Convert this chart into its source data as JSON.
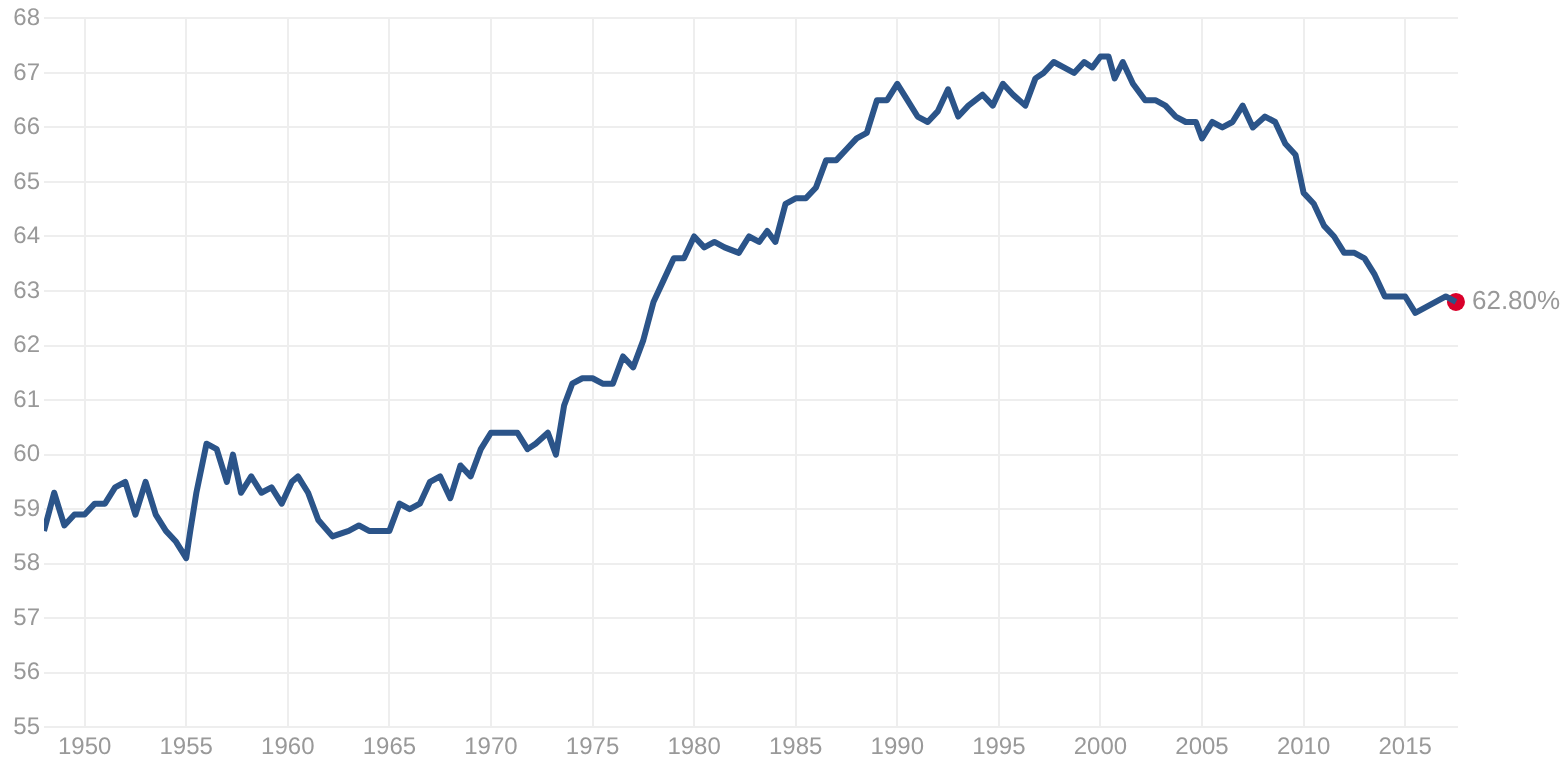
{
  "chart_data": {
    "type": "line",
    "x": [
      1948.0,
      1948.5,
      1949,
      1949.5,
      1950,
      1950.5,
      1951,
      1951.5,
      1952,
      1952.5,
      1953,
      1953.5,
      1954,
      1954.5,
      1955,
      1955.2,
      1955.5,
      1956,
      1956.5,
      1957,
      1957.3,
      1957.7,
      1958.2,
      1958.7,
      1959.2,
      1959.7,
      1960.2,
      1960.5,
      1961,
      1961.5,
      1962.2,
      1963,
      1963.5,
      1964,
      1965,
      1965.5,
      1966,
      1966.5,
      1967,
      1967.5,
      1968,
      1968.5,
      1969,
      1969.5,
      1970,
      1971,
      1971.3,
      1971.8,
      1972.2,
      1972.8,
      1973.2,
      1973.6,
      1974,
      1974.5,
      1975,
      1975.5,
      1976,
      1976.5,
      1977,
      1977.5,
      1978,
      1978.5,
      1979,
      1979.5,
      1980,
      1980.5,
      1981,
      1981.5,
      1982.2,
      1982.7,
      1983.2,
      1983.6,
      1984,
      1984.5,
      1985,
      1985.5,
      1986,
      1986.5,
      1987,
      1987.5,
      1988,
      1988.5,
      1989,
      1989.5,
      1990,
      1990.5,
      1991,
      1991.5,
      1992,
      1992.5,
      1993,
      1993.5,
      1994.2,
      1994.7,
      1995.2,
      1995.7,
      1996.3,
      1996.8,
      1997.2,
      1997.7,
      1998.2,
      1998.7,
      1999.2,
      1999.6,
      2000,
      2000.4,
      2000.7,
      2001.1,
      2001.6,
      2002.2,
      2002.7,
      2003.2,
      2003.7,
      2004.2,
      2004.7,
      2005,
      2005.5,
      2006,
      2006.5,
      2007,
      2007.5,
      2008.1,
      2008.6,
      2009.1,
      2009.6,
      2010,
      2010.5,
      2011,
      2011.5,
      2012,
      2012.5,
      2013,
      2013.5,
      2014,
      2014.5,
      2015,
      2015.5,
      2016,
      2016.5,
      2017,
      2017.5
    ],
    "series": [
      {
        "color": "#2b5489",
        "marker": "none",
        "values": [
          58.6,
          59.3,
          58.7,
          58.9,
          58.9,
          59.1,
          59.1,
          59.4,
          59.5,
          58.9,
          59.5,
          58.9,
          58.6,
          58.4,
          58.1,
          58.6,
          59.3,
          60.2,
          60.1,
          59.5,
          60.0,
          59.3,
          59.6,
          59.3,
          59.4,
          59.1,
          59.5,
          59.6,
          59.3,
          58.8,
          58.5,
          58.6,
          58.7,
          58.6,
          58.6,
          59.1,
          59.0,
          59.1,
          59.5,
          59.6,
          59.2,
          59.8,
          59.6,
          60.1,
          60.4,
          60.4,
          60.4,
          60.1,
          60.2,
          60.4,
          60.0,
          60.9,
          61.3,
          61.4,
          61.4,
          61.3,
          61.3,
          61.8,
          61.6,
          62.1,
          62.8,
          63.2,
          63.6,
          63.6,
          64.0,
          63.8,
          63.9,
          63.8,
          63.7,
          64.0,
          63.9,
          64.1,
          63.9,
          64.6,
          64.7,
          64.7,
          64.9,
          65.4,
          65.4,
          65.6,
          65.8,
          65.9,
          66.5,
          66.5,
          66.8,
          66.5,
          66.2,
          66.1,
          66.3,
          66.7,
          66.2,
          66.4,
          66.6,
          66.4,
          66.8,
          66.6,
          66.4,
          66.9,
          67.0,
          67.2,
          67.1,
          67.0,
          67.2,
          67.1,
          67.3,
          67.3,
          66.9,
          67.2,
          66.8,
          66.5,
          66.5,
          66.4,
          66.2,
          66.1,
          66.1,
          65.8,
          66.1,
          66.0,
          66.1,
          66.4,
          66.0,
          66.2,
          66.1,
          65.7,
          65.5,
          64.8,
          64.6,
          64.2,
          64.0,
          63.7,
          63.7,
          63.6,
          63.3,
          62.9,
          62.9,
          62.9,
          62.6,
          62.7,
          62.8,
          62.9,
          62.8
        ]
      },
      {
        "type": "scatter",
        "marker": "circle",
        "color": "#d9002b",
        "x": [
          2017.5
        ],
        "values": [
          62.8
        ]
      }
    ],
    "xlim": [
      1948,
      2017.6
    ],
    "xticks": [
      1950,
      1955,
      1960,
      1965,
      1970,
      1975,
      1980,
      1985,
      1990,
      1995,
      2000,
      2005,
      2010,
      2015
    ],
    "ylim": [
      55,
      68
    ],
    "yticks": [
      55,
      56,
      57,
      58,
      59,
      60,
      61,
      62,
      63,
      64,
      65,
      66,
      67,
      68
    ],
    "grid": true,
    "legend": false,
    "line_style": "solid",
    "annotations": [
      {
        "text": "62.80%",
        "x": 2017.5,
        "y": 62.8
      }
    ]
  }
}
